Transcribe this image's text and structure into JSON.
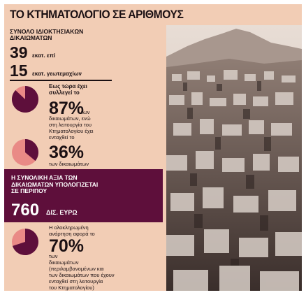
{
  "title": "ΤΟ ΚΤΗΜΑΤΟΛΟΓΙΟ ΣΕ ΑΡΙΘΜΟΥΣ",
  "total": {
    "label_line1": "ΣΥΝΟΛΟ ΙΔΙΟΚΤΗΣΙΑΚΩΝ",
    "label_line2": "ΔΙΚΑΙΩΜΑΤΩΝ",
    "value1": "39",
    "unit1": "εκατ. επί",
    "value2": "15",
    "unit2": "εκατ. γεωτεμαχίων"
  },
  "stat1": {
    "intro1": "Εως τώρα έχει",
    "intro2": "συλλεγεί το",
    "pct": "87%",
    "desc1": "των",
    "desc2": "δικαιωμάτων, ενώ",
    "desc3": "στη λειτουργία του",
    "desc4": "Κτηματολογίου έχει",
    "desc5": "ενταχθεί το",
    "fraction": 0.87
  },
  "stat2": {
    "pct": "36%",
    "desc1": "των δικαιωμάτων",
    "fraction": 0.36
  },
  "banner": {
    "line1": "Η ΣΥΝΟΛΙΚΗ ΑΞΙΑ ΤΩΝ",
    "line2": "ΔΙΚΑΙΩΜΑΤΩΝ ΥΠΟΛΟΓΙΖΕΤΑΙ",
    "line3": "ΣΕ ΠΕΡΙΠΟΥ",
    "value": "760",
    "unit": "ΔΙΣ. ΕΥΡΩ"
  },
  "stat3": {
    "intro1": "Η ολοκληρωμένη",
    "intro2": "ανάρτηση αφορά το",
    "pct": "70%",
    "desc1": "των",
    "desc2": "δικαιωμάτων",
    "desc3": "(περιλαμβανομένων και",
    "desc4": "των δικαιωμάτων που έχουν",
    "desc5": "ενταχθεί στη λειτουργία",
    "desc6": "του Κτηματολογίου)",
    "fraction": 0.7
  },
  "colors": {
    "background": "#f2cdb5",
    "accent": "#5e0f3b",
    "pie_light": "#e98a86",
    "text": "#1b1013"
  }
}
